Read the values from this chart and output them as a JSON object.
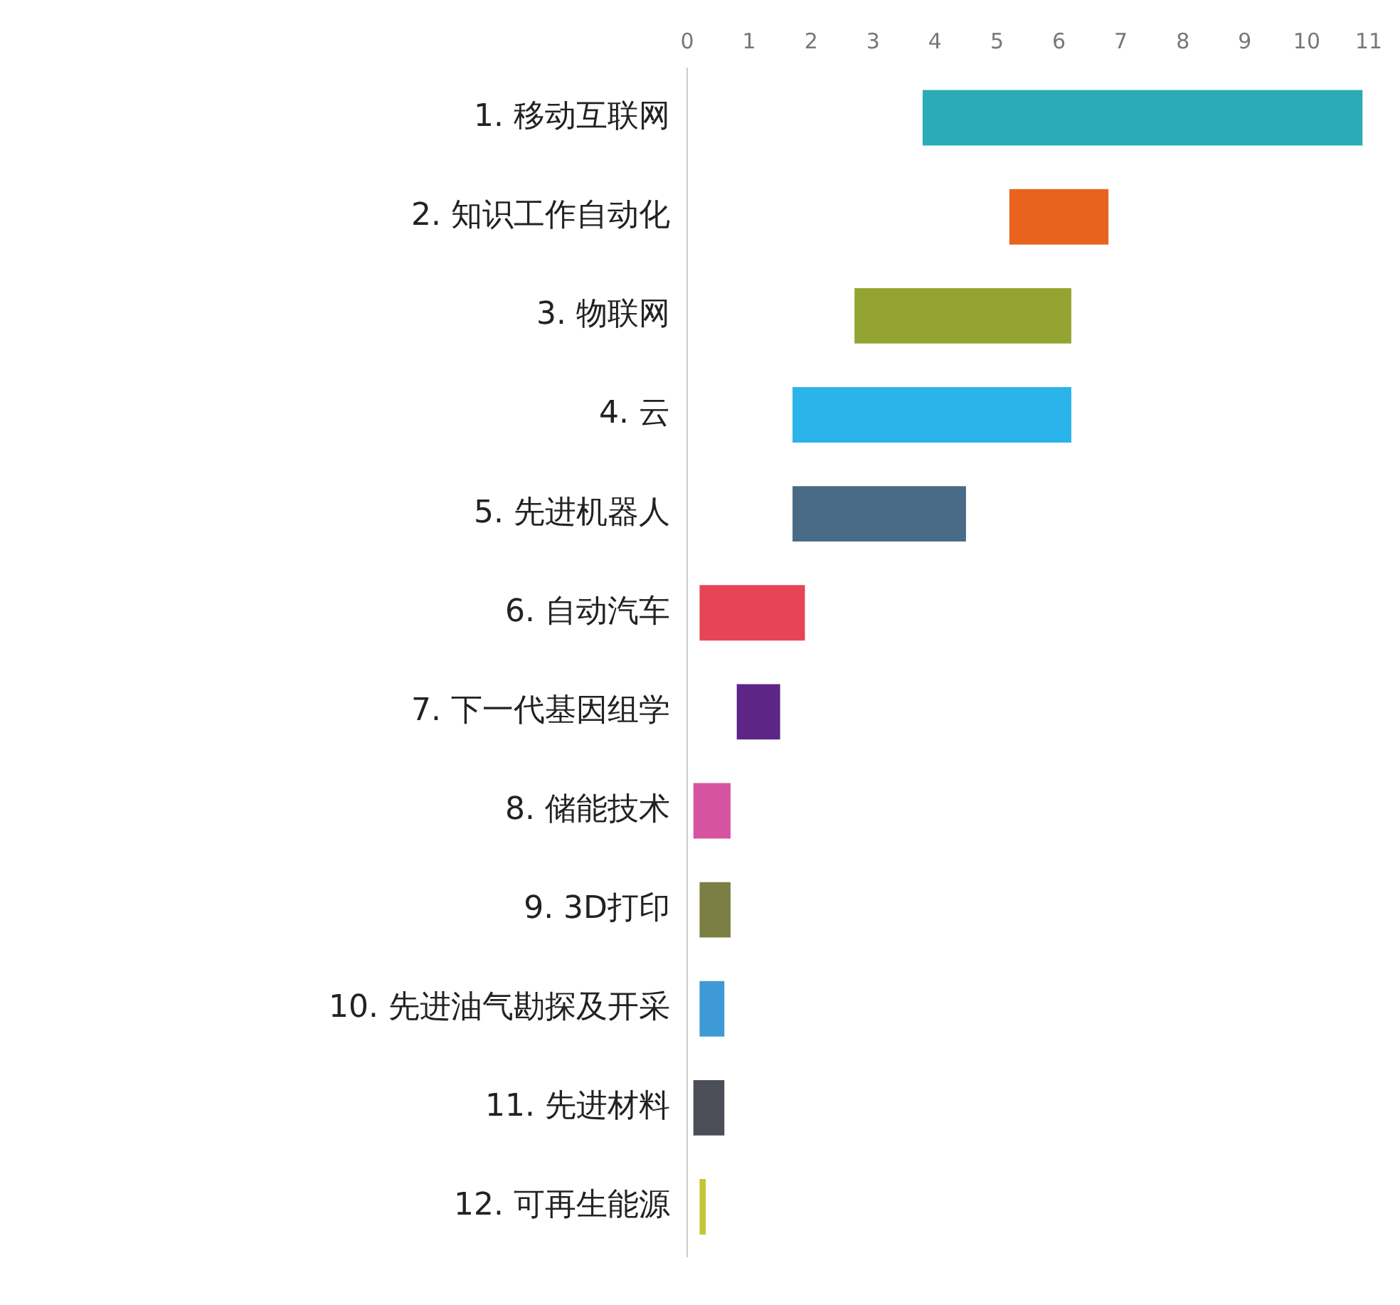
{
  "chart_data": {
    "type": "bar",
    "orientation": "horizontal",
    "categories": [
      "1. 移动互联网",
      "2. 知识工作自动化",
      "3. 物联网",
      "4. 云",
      "5. 先进机器人",
      "6. 自动汽车",
      "7. 下一代基因组学",
      "8. 储能技术",
      "9. 3D打印",
      "10. 先进油气勘探及开采",
      "11. 先进材料",
      "12. 可再生能源"
    ],
    "base": [
      3.8,
      5.2,
      2.7,
      1.7,
      1.7,
      0.2,
      0.8,
      0.1,
      0.2,
      0.2,
      0.1,
      0.2
    ],
    "values": [
      7.1,
      1.6,
      3.5,
      4.5,
      2.8,
      1.7,
      0.7,
      0.6,
      0.5,
      0.4,
      0.5,
      0.1
    ],
    "colors": [
      "#2aabb5",
      "#e8641e",
      "#94a433",
      "#2ab4ea",
      "#4a6b86",
      "#e54556",
      "#5d2586",
      "#d653a0",
      "#7b7f43",
      "#3e9ad6",
      "#4b4d57",
      "#c3c535"
    ],
    "xlim": [
      0,
      11
    ],
    "xticks": [
      0,
      1,
      2,
      3,
      4,
      5,
      6,
      7,
      8,
      9,
      10,
      11
    ],
    "grid": false,
    "legend": false
  }
}
